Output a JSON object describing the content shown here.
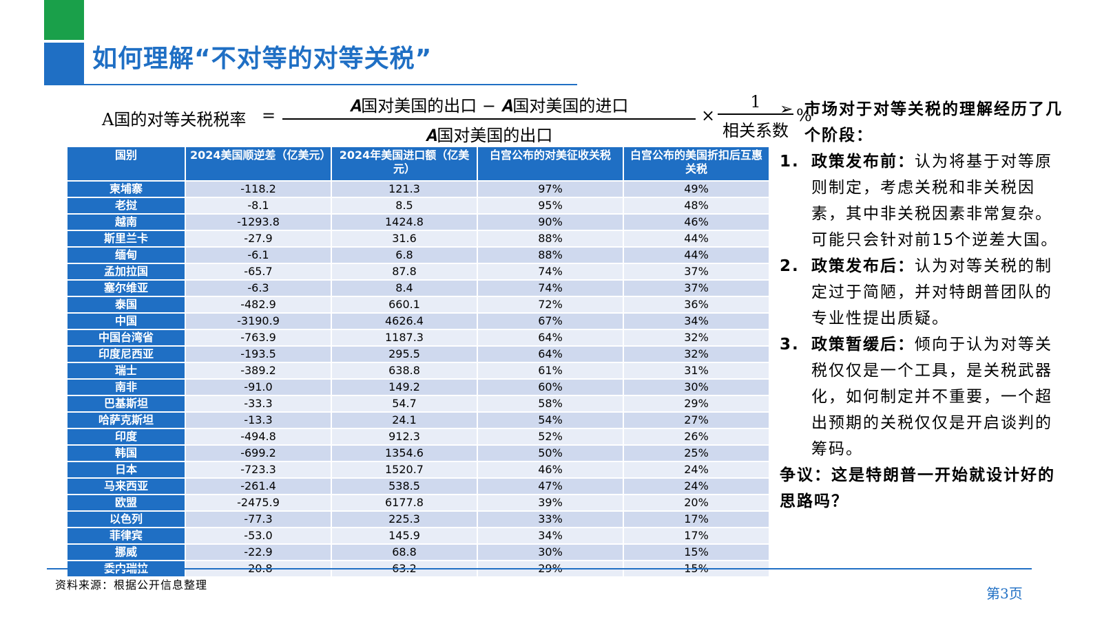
{
  "colors": {
    "blue": "#1f6fc4",
    "green": "#1aa04a",
    "row_odd": "#cfd9ee",
    "row_even": "#e8edf7"
  },
  "title": "如何理解“不对等的对等关税”",
  "formula": {
    "lhs": "A国的对等关税税率",
    "eq": "=",
    "frac1_num": "𝑨国对美国的出口 − 𝑨国对美国的进口",
    "frac1_den": "𝑨国对美国的出口",
    "times": "×",
    "frac2_num": "1",
    "frac2_den": "相关系数",
    "pct": "%"
  },
  "table": {
    "headers": [
      "国别",
      "2024美国顺逆差（亿美元）",
      "2024年美国进口额（亿美元）",
      "白宫公布的对美征收关税",
      "白宫公布的美国折扣后互惠关税"
    ],
    "rows": [
      [
        "柬埔寨",
        "-118.2",
        "121.3",
        "97%",
        "49%"
      ],
      [
        "老挝",
        "-8.1",
        "8.5",
        "95%",
        "48%"
      ],
      [
        "越南",
        "-1293.8",
        "1424.8",
        "90%",
        "46%"
      ],
      [
        "斯里兰卡",
        "-27.9",
        "31.6",
        "88%",
        "44%"
      ],
      [
        "缅甸",
        "-6.1",
        "6.8",
        "88%",
        "44%"
      ],
      [
        "孟加拉国",
        "-65.7",
        "87.8",
        "74%",
        "37%"
      ],
      [
        "塞尔维亚",
        "-6.3",
        "8.4",
        "74%",
        "37%"
      ],
      [
        "泰国",
        "-482.9",
        "660.1",
        "72%",
        "36%"
      ],
      [
        "中国",
        "-3190.9",
        "4626.4",
        "67%",
        "34%"
      ],
      [
        "中国台湾省",
        "-763.9",
        "1187.3",
        "64%",
        "32%"
      ],
      [
        "印度尼西亚",
        "-193.5",
        "295.5",
        "64%",
        "32%"
      ],
      [
        "瑞士",
        "-389.2",
        "638.8",
        "61%",
        "31%"
      ],
      [
        "南非",
        "-91.0",
        "149.2",
        "60%",
        "30%"
      ],
      [
        "巴基斯坦",
        "-33.3",
        "54.7",
        "58%",
        "29%"
      ],
      [
        "哈萨克斯坦",
        "-13.3",
        "24.1",
        "54%",
        "27%"
      ],
      [
        "印度",
        "-494.8",
        "912.3",
        "52%",
        "26%"
      ],
      [
        "韩国",
        "-699.2",
        "1354.6",
        "50%",
        "25%"
      ],
      [
        "日本",
        "-723.3",
        "1520.7",
        "46%",
        "24%"
      ],
      [
        "马来西亚",
        "-261.4",
        "538.5",
        "47%",
        "24%"
      ],
      [
        "欧盟",
        "-2475.9",
        "6177.8",
        "39%",
        "20%"
      ],
      [
        "以色列",
        "-77.3",
        "225.3",
        "33%",
        "17%"
      ],
      [
        "菲律宾",
        "-53.0",
        "145.9",
        "34%",
        "17%"
      ],
      [
        "挪威",
        "-22.9",
        "68.8",
        "30%",
        "15%"
      ],
      [
        "委内瑞拉",
        "-20.8",
        "63.2",
        "29%",
        "15%"
      ]
    ]
  },
  "right": {
    "arrow": "➢",
    "headline": "市场对于对等关税的理解经历了几个阶段：",
    "items": [
      {
        "num": "1.",
        "label": "政策发布前：",
        "text": "认为将基于对等原则制定，考虑关税和非关税因素，其中非关税因素非常复杂。可能只会针对前15个逆差大国。"
      },
      {
        "num": "2.",
        "label": "政策发布后：",
        "text": "认为对等关税的制定过于简陋，并对特朗普团队的专业性提出质疑。"
      },
      {
        "num": "3.",
        "label": "政策暂缓后：",
        "text": "倾向于认为对等关税仅仅是一个工具，是关税武器化，如何制定并不重要，一个超出预期的关税仅仅是开启谈判的筹码。"
      }
    ],
    "dispute": "争议：这是特朗普一开始就设计好的思路吗？"
  },
  "footer": {
    "source": "资料来源：根据公开信息整理",
    "page": "第3页"
  }
}
